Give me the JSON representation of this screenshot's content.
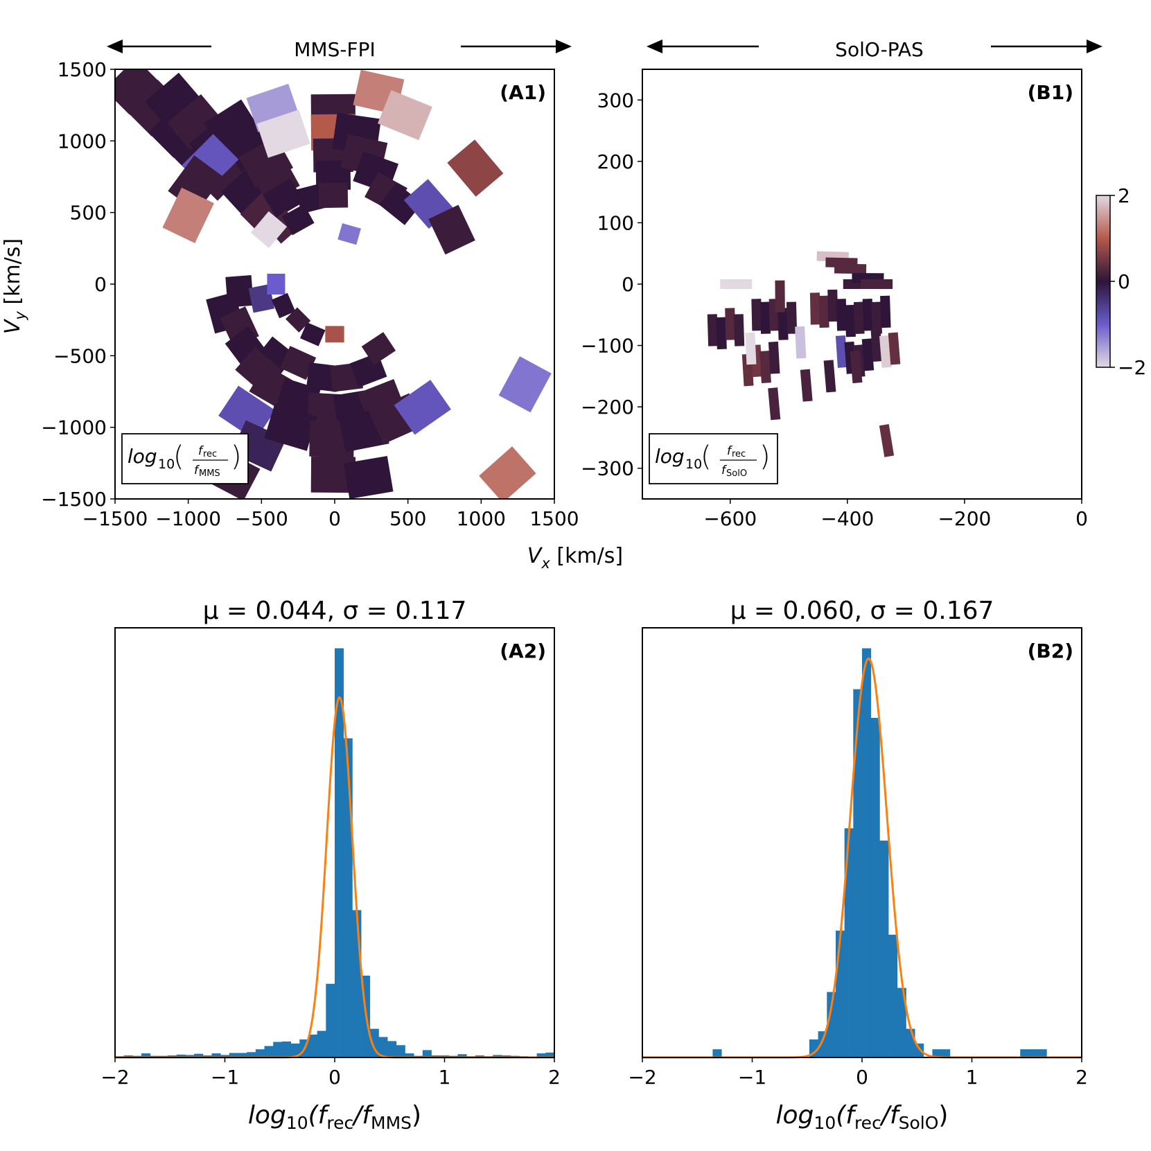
{
  "colors": {
    "histogram_bar": "#1f77b4",
    "gaussian_fit": "#ff7f0e",
    "colormap": [
      "#e2d9e2",
      "#6a5ccc",
      "#2e1539",
      "#b5594b",
      "#e2d9e2"
    ]
  },
  "icons": {
    "arrow_left": "left-arrow-icon",
    "arrow_right": "right-arrow-icon"
  },
  "panel_A1": {
    "instrument": "MMS-FPI",
    "label": "(A1)",
    "legend": {
      "prefix": "log",
      "sub": "10",
      "num": "f",
      "num_sub": "rec",
      "den": "f",
      "den_sub": "MMS"
    },
    "xlabel_var": "V",
    "xlabel_sub": "x",
    "xlabel_unit": " [km/s]",
    "ylabel_var": "V",
    "ylabel_sub": "y",
    "ylabel_unit": " [km/s]"
  },
  "panel_B1": {
    "instrument": "SolO-PAS",
    "label": "(B1)",
    "legend": {
      "prefix": "log",
      "sub": "10",
      "num": "f",
      "num_sub": "rec",
      "den": "f",
      "den_sub": "SolO"
    }
  },
  "panel_A2": {
    "label": "(A2)",
    "title": "μ = 0.044, σ = 0.117",
    "xlabel": {
      "prefix": "log",
      "sub": "10",
      "open": "(f",
      "num_sub": "rec",
      "mid": "/f",
      "den_sub": "MMS",
      "close": ")"
    }
  },
  "panel_B2": {
    "label": "(B2)",
    "title": "μ = 0.060, σ = 0.167",
    "xlabel": {
      "prefix": "log",
      "sub": "10",
      "open": "(f",
      "num_sub": "rec",
      "mid": "/f",
      "den_sub": "SolO",
      "close": ")"
    }
  },
  "chart_data": [
    {
      "type": "heatmap",
      "id": "A1",
      "title": "MMS-FPI",
      "xlabel": "Vx [km/s]",
      "ylabel": "Vy [km/s]",
      "xlim": [
        -1500,
        1500
      ],
      "ylim": [
        -1500,
        1500
      ],
      "xticks": [
        -1500,
        -1000,
        -500,
        0,
        500,
        1000,
        1500
      ],
      "yticks": [
        -1500,
        -1000,
        -500,
        0,
        500,
        1000,
        1500
      ],
      "colorbar": {
        "range": [
          -2,
          2
        ],
        "ticks": [
          2,
          0,
          -2
        ]
      },
      "cells_vx_vy_value": [
        [
          -1380,
          1380,
          0.1
        ],
        [
          -1230,
          1230,
          0.1
        ],
        [
          -1080,
          1080,
          0.0
        ],
        [
          -930,
          930,
          0.0
        ],
        [
          -780,
          780,
          0.1
        ],
        [
          -1100,
          1280,
          0.0
        ],
        [
          -950,
          1130,
          0.1
        ],
        [
          -800,
          980,
          0.0
        ],
        [
          -650,
          830,
          0.1
        ],
        [
          -600,
          650,
          0.0
        ],
        [
          -500,
          500,
          0.2
        ],
        [
          -700,
          1100,
          0.0
        ],
        [
          -570,
          970,
          0.0
        ],
        [
          -470,
          850,
          0.1
        ],
        [
          -400,
          720,
          0.1
        ],
        [
          -350,
          600,
          0.0
        ],
        [
          -420,
          1230,
          -1.5
        ],
        [
          -350,
          1050,
          -2.0
        ],
        [
          -850,
          850,
          -0.9
        ],
        [
          -950,
          700,
          0.1
        ],
        [
          -1000,
          480,
          1.3
        ],
        [
          -350,
          400,
          0.2
        ],
        [
          -250,
          450,
          0.0
        ],
        [
          -150,
          600,
          0.0
        ],
        [
          -450,
          380,
          -2.0
        ],
        [
          -10,
          1200,
          0.1
        ],
        [
          -10,
          1060,
          1.0
        ],
        [
          -10,
          900,
          0.1
        ],
        [
          -10,
          760,
          0.0
        ],
        [
          -10,
          620,
          0.1
        ],
        [
          150,
          1050,
          0.0
        ],
        [
          200,
          900,
          0.1
        ],
        [
          280,
          780,
          0.0
        ],
        [
          350,
          640,
          0.1
        ],
        [
          450,
          560,
          0.0
        ],
        [
          300,
          1340,
          1.3
        ],
        [
          480,
          1180,
          1.7
        ],
        [
          960,
          810,
          0.7
        ],
        [
          640,
          560,
          -0.8
        ],
        [
          800,
          380,
          0.1
        ],
        [
          -400,
          -500,
          0.0
        ],
        [
          -250,
          -550,
          0.1
        ],
        [
          -80,
          -650,
          0.0
        ],
        [
          80,
          -650,
          0.1
        ],
        [
          230,
          -600,
          0.0
        ],
        [
          -420,
          -720,
          0.1
        ],
        [
          -250,
          -800,
          0.0
        ],
        [
          -50,
          -880,
          0.1
        ],
        [
          140,
          -870,
          0.0
        ],
        [
          320,
          -820,
          0.1
        ],
        [
          -600,
          -900,
          -0.8
        ],
        [
          -520,
          -1130,
          -0.2
        ],
        [
          -300,
          -1000,
          0.0
        ],
        [
          -20,
          -1080,
          0.1
        ],
        [
          200,
          -1020,
          0.0
        ],
        [
          420,
          -940,
          0.1
        ],
        [
          600,
          -860,
          -0.9
        ],
        [
          -700,
          -1330,
          0.1
        ],
        [
          -10,
          -1330,
          0.1
        ],
        [
          230,
          -1350,
          0.0
        ],
        [
          -750,
          -200,
          0.0
        ],
        [
          -650,
          -300,
          0.1
        ],
        [
          -600,
          -450,
          0.0
        ],
        [
          -520,
          -600,
          0.1
        ],
        [
          -650,
          -50,
          0.0
        ],
        [
          -500,
          -100,
          -0.5
        ],
        [
          -400,
          0,
          -1.0
        ],
        [
          -350,
          -150,
          0.0
        ],
        [
          -250,
          -250,
          0.1
        ],
        [
          -150,
          -350,
          0.0
        ],
        [
          1180,
          -1330,
          1.2
        ],
        [
          1300,
          -700,
          -1.2
        ],
        [
          0,
          -350,
          0.9
        ],
        [
          300,
          -450,
          0.1
        ],
        [
          100,
          350,
          -1.2
        ]
      ]
    },
    {
      "type": "heatmap",
      "id": "B1",
      "title": "SolO-PAS",
      "xlim": [
        -750,
        0
      ],
      "ylim": [
        -350,
        350
      ],
      "xticks": [
        -600,
        -400,
        -200,
        0
      ],
      "yticks": [
        300,
        200,
        100,
        0,
        -100,
        -200,
        -300
      ],
      "cells_vx_vy_value": [
        [
          -630,
          -75,
          0.1
        ],
        [
          -615,
          -80,
          0.0
        ],
        [
          -600,
          -65,
          0.3
        ],
        [
          -585,
          -75,
          0.1
        ],
        [
          -555,
          -50,
          0.1
        ],
        [
          -540,
          -55,
          0.0
        ],
        [
          -525,
          -50,
          0.2
        ],
        [
          -510,
          -65,
          0.0
        ],
        [
          -495,
          -55,
          0.1
        ],
        [
          -570,
          -140,
          0.4
        ],
        [
          -555,
          -125,
          0.5
        ],
        [
          -540,
          -135,
          0.3
        ],
        [
          -525,
          -120,
          0.1
        ],
        [
          -480,
          -95,
          -1.8
        ],
        [
          -470,
          -165,
          0.2
        ],
        [
          -525,
          -195,
          0.2
        ],
        [
          -455,
          -40,
          0.4
        ],
        [
          -440,
          -45,
          0.3
        ],
        [
          -425,
          -35,
          0.1
        ],
        [
          -410,
          -50,
          0.0
        ],
        [
          -395,
          -60,
          0.0
        ],
        [
          -380,
          -55,
          0.1
        ],
        [
          -365,
          -50,
          0.0
        ],
        [
          -350,
          -55,
          0.1
        ],
        [
          -335,
          -45,
          0.0
        ],
        [
          -425,
          45,
          1.8
        ],
        [
          -410,
          35,
          0.3
        ],
        [
          -395,
          25,
          0.3
        ],
        [
          -380,
          0,
          0.1
        ],
        [
          -365,
          10,
          0.0
        ],
        [
          -350,
          0,
          0.2
        ],
        [
          -410,
          -110,
          -0.8
        ],
        [
          -395,
          -120,
          0.0
        ],
        [
          -380,
          -125,
          0.1
        ],
        [
          -365,
          -115,
          0.0
        ],
        [
          -350,
          -100,
          0.1
        ],
        [
          -335,
          -110,
          1.9
        ],
        [
          -320,
          -105,
          0.4
        ],
        [
          -430,
          -150,
          0.1
        ],
        [
          -385,
          -135,
          0.2
        ],
        [
          -333,
          -255,
          0.4
        ],
        [
          -590,
          0,
          -2.0
        ],
        [
          -515,
          -20,
          0.3
        ],
        [
          -565,
          -105,
          -2.0
        ]
      ]
    },
    {
      "type": "bar",
      "id": "A2",
      "title": "μ = 0.044, σ = 0.117",
      "xlabel": "log10(frec/fMMS)",
      "xlim": [
        -2,
        2
      ],
      "xticks": [
        -2,
        -1,
        0,
        1,
        2
      ],
      "bin_width": 0.08,
      "bin_left_edges": [
        -2.0,
        -1.92,
        -1.84,
        -1.76,
        -1.68,
        -1.6,
        -1.52,
        -1.44,
        -1.36,
        -1.28,
        -1.2,
        -1.12,
        -1.04,
        -0.96,
        -0.88,
        -0.8,
        -0.72,
        -0.64,
        -0.56,
        -0.48,
        -0.4,
        -0.32,
        -0.24,
        -0.16,
        -0.08,
        0.0,
        0.08,
        0.16,
        0.24,
        0.32,
        0.4,
        0.48,
        0.56,
        0.64,
        0.72,
        0.8,
        0.88,
        0.96,
        1.04,
        1.12,
        1.2,
        1.28,
        1.36,
        1.44,
        1.52,
        1.6,
        1.68,
        1.76,
        1.84,
        1.92
      ],
      "counts": [
        0.003,
        0.005,
        0.004,
        0.01,
        0.004,
        0.004,
        0.005,
        0.007,
        0.006,
        0.009,
        0.005,
        0.01,
        0.006,
        0.011,
        0.011,
        0.013,
        0.02,
        0.028,
        0.038,
        0.039,
        0.034,
        0.044,
        0.056,
        0.065,
        0.18,
        1.0,
        0.78,
        0.36,
        0.2,
        0.07,
        0.05,
        0.04,
        0.03,
        0.01,
        0.004,
        0.018,
        0.005,
        0.005,
        0.004,
        0.008,
        0.003,
        0.005,
        0.003,
        0.006,
        0.005,
        0.004,
        0.003,
        0.001,
        0.01,
        0.012
      ],
      "gaussian_fit": {
        "mu": 0.044,
        "sigma": 0.117,
        "peak": 0.88
      }
    },
    {
      "type": "bar",
      "id": "B2",
      "title": "μ = 0.060, σ = 0.167",
      "xlabel": "log10(frec/fSolO)",
      "xlim": [
        -2,
        2
      ],
      "xticks": [
        -2,
        -1,
        0,
        1,
        2
      ],
      "bins_left_width_count": [
        [
          -1.36,
          0.08,
          0.02
        ],
        [
          -0.48,
          0.08,
          0.044
        ],
        [
          -0.4,
          0.08,
          0.064
        ],
        [
          -0.32,
          0.08,
          0.16
        ],
        [
          -0.24,
          0.08,
          0.31
        ],
        [
          -0.16,
          0.08,
          0.56
        ],
        [
          -0.08,
          0.08,
          0.9
        ],
        [
          0.0,
          0.08,
          1.0
        ],
        [
          0.08,
          0.08,
          0.83
        ],
        [
          0.16,
          0.08,
          0.53
        ],
        [
          0.24,
          0.08,
          0.3
        ],
        [
          0.32,
          0.08,
          0.17
        ],
        [
          0.4,
          0.08,
          0.07
        ],
        [
          0.48,
          0.08,
          0.034
        ],
        [
          0.64,
          0.16,
          0.02
        ],
        [
          1.44,
          0.24,
          0.02
        ]
      ],
      "gaussian_fit": {
        "mu": 0.06,
        "sigma": 0.167,
        "peak": 0.975
      }
    }
  ]
}
